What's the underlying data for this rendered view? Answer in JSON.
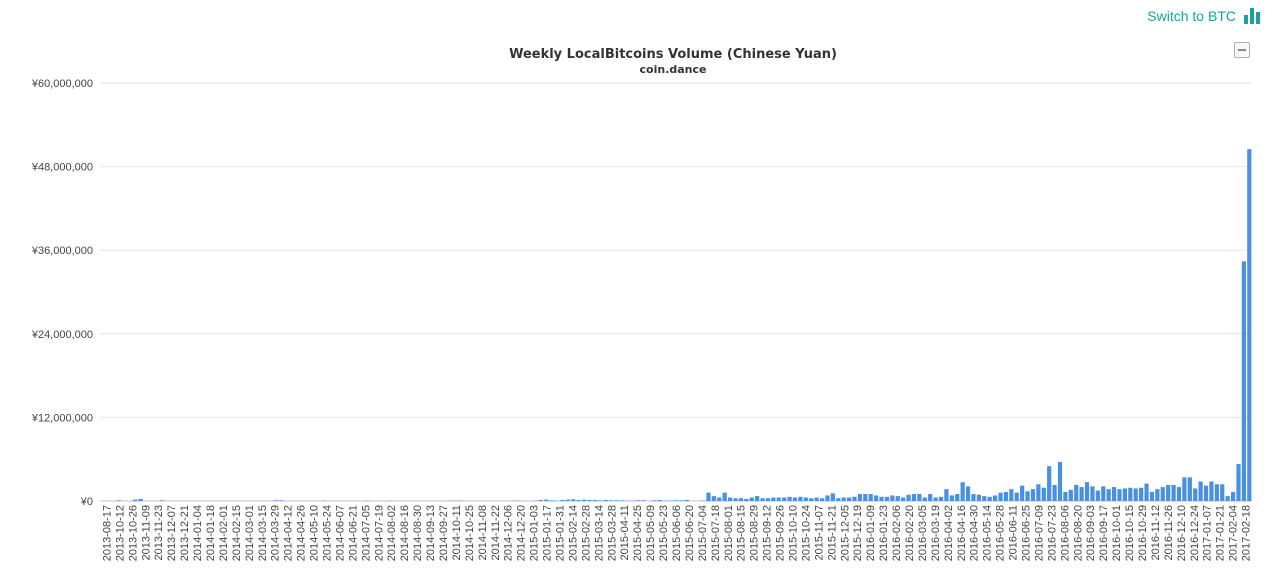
{
  "header": {
    "switch_label": "Switch to BTC",
    "switch_icon": "bar-chart-icon",
    "accent_color": "#17a2a0"
  },
  "chart_menu_icon": "hamburger-menu-icon",
  "chart_data": {
    "type": "bar",
    "title": "Weekly LocalBitcoins Volume (Chinese Yuan)",
    "subtitle": "coin.dance",
    "xlabel": "",
    "ylabel": "",
    "bar_color": "#4a90e2",
    "grid": true,
    "ylim": [
      0,
      60000000
    ],
    "y_ticks": [
      0,
      12000000,
      24000000,
      36000000,
      48000000,
      60000000
    ],
    "y_tick_labels": [
      "¥0",
      "¥12,000,000",
      "¥24,000,000",
      "¥36,000,000",
      "¥48,000,000",
      "¥60,000,000"
    ],
    "x_tick_labels": [
      "2013-08-17",
      "2013-10-12",
      "2013-10-26",
      "2013-11-09",
      "2013-11-23",
      "2013-12-07",
      "2013-12-21",
      "2014-01-04",
      "2014-01-18",
      "2014-02-01",
      "2014-02-15",
      "2014-03-01",
      "2014-03-15",
      "2014-03-29",
      "2014-04-12",
      "2014-04-26",
      "2014-05-10",
      "2014-05-24",
      "2014-06-07",
      "2014-06-21",
      "2014-07-05",
      "2014-07-19",
      "2014-08-02",
      "2014-08-16",
      "2014-08-30",
      "2014-09-13",
      "2014-09-27",
      "2014-10-11",
      "2014-10-25",
      "2014-11-08",
      "2014-11-22",
      "2014-12-06",
      "2014-12-20",
      "2015-01-03",
      "2015-01-17",
      "2015-01-31",
      "2015-02-14",
      "2015-02-28",
      "2015-03-14",
      "2015-03-28",
      "2015-04-11",
      "2015-04-25",
      "2015-05-09",
      "2015-05-23",
      "2015-06-06",
      "2015-06-20",
      "2015-07-04",
      "2015-07-18",
      "2015-08-01",
      "2015-08-15",
      "2015-08-29",
      "2015-09-12",
      "2015-09-26",
      "2015-10-10",
      "2015-10-24",
      "2015-11-07",
      "2015-11-21",
      "2015-12-05",
      "2015-12-19",
      "2016-01-09",
      "2016-01-23",
      "2016-02-06",
      "2016-02-20",
      "2016-03-05",
      "2016-03-19",
      "2016-04-02",
      "2016-04-16",
      "2016-04-30",
      "2016-05-14",
      "2016-05-28",
      "2016-06-11",
      "2016-06-25",
      "2016-07-09",
      "2016-07-23",
      "2016-08-06",
      "2016-08-20",
      "2016-09-03",
      "2016-09-17",
      "2016-10-01",
      "2016-10-15",
      "2016-10-29",
      "2016-11-12",
      "2016-11-26",
      "2016-12-10",
      "2016-12-24",
      "2017-01-07",
      "2017-01-21",
      "2017-02-04",
      "2017-02-18"
    ],
    "values": [
      0,
      0,
      0,
      100000,
      0,
      0,
      200000,
      300000,
      0,
      0,
      0,
      100000,
      0,
      0,
      0,
      0,
      0,
      0,
      0,
      0,
      0,
      0,
      0,
      0,
      0,
      0,
      0,
      0,
      0,
      0,
      0,
      0,
      100000,
      100000,
      0,
      0,
      0,
      0,
      0,
      0,
      0,
      50000,
      0,
      0,
      0,
      0,
      0,
      0,
      0,
      50000,
      0,
      0,
      0,
      50000,
      0,
      0,
      0,
      0,
      0,
      0,
      0,
      0,
      0,
      0,
      50000,
      50000,
      50000,
      0,
      0,
      0,
      0,
      0,
      0,
      0,
      0,
      0,
      50000,
      50000,
      0,
      0,
      50000,
      150000,
      200000,
      100000,
      50000,
      150000,
      200000,
      250000,
      150000,
      200000,
      150000,
      150000,
      100000,
      150000,
      100000,
      100000,
      100000,
      50000,
      50000,
      100000,
      100000,
      0,
      100000,
      150000,
      50000,
      50000,
      100000,
      100000,
      150000,
      0,
      0,
      50000,
      1200000,
      700000,
      500000,
      1200000,
      500000,
      400000,
      400000,
      300000,
      500000,
      700000,
      400000,
      400000,
      500000,
      500000,
      500000,
      600000,
      500000,
      600000,
      500000,
      400000,
      500000,
      400000,
      800000,
      1100000,
      400000,
      500000,
      500000,
      600000,
      1000000,
      1000000,
      1000000,
      800000,
      600000,
      600000,
      800000,
      700000,
      500000,
      900000,
      1000000,
      1000000,
      500000,
      1000000,
      500000,
      600000,
      1700000,
      800000,
      1000000,
      2700000,
      2100000,
      1000000,
      900000,
      700000,
      600000,
      800000,
      1200000,
      1300000,
      1700000,
      1200000,
      2200000,
      1400000,
      1700000,
      2400000,
      1900000,
      5000000,
      2300000,
      5600000,
      1300000,
      1600000,
      2300000,
      2000000,
      2700000,
      2100000,
      1500000,
      2100000,
      1700000,
      2000000,
      1700000,
      1800000,
      1900000,
      1800000,
      1900000,
      2500000,
      1300000,
      1700000,
      2000000,
      2300000,
      2300000,
      2000000,
      3400000,
      3400000,
      1800000,
      2800000,
      2200000,
      2800000,
      2400000,
      2400000,
      700000,
      1300000,
      5300000,
      34400000,
      50500000
    ]
  }
}
